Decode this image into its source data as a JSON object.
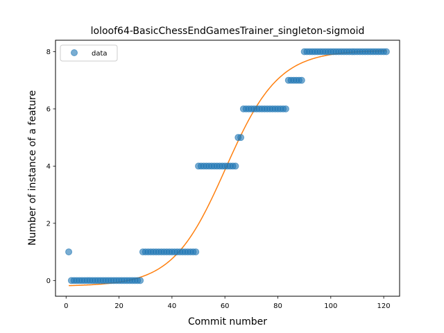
{
  "chart_data": {
    "type": "scatter",
    "title": "loloof64-BasicChessEndGamesTrainer_singleton-sigmoid",
    "xlabel": "Commit number",
    "ylabel": "Number of instance of a feature",
    "xlim": [
      -4,
      126
    ],
    "ylim": [
      -0.55,
      8.4
    ],
    "xticks": [
      0,
      20,
      40,
      60,
      80,
      100,
      120
    ],
    "yticks": [
      0,
      2,
      4,
      6,
      8
    ],
    "grid": false,
    "legend": {
      "position": "top-left",
      "entries": [
        "data"
      ]
    },
    "colors": {
      "data": "#1f77b4",
      "fit": "#ff7f0e"
    },
    "series": [
      {
        "name": "data",
        "kind": "scatter",
        "segments": [
          {
            "x_from": 1,
            "x_to": 1,
            "y": 1
          },
          {
            "x_from": 2,
            "x_to": 28,
            "y": 0
          },
          {
            "x_from": 29,
            "x_to": 49,
            "y": 1
          },
          {
            "x_from": 50,
            "x_to": 64,
            "y": 4
          },
          {
            "x_from": 65,
            "x_to": 66,
            "y": 5
          },
          {
            "x_from": 67,
            "x_to": 83,
            "y": 6
          },
          {
            "x_from": 84,
            "x_to": 89,
            "y": 7
          },
          {
            "x_from": 90,
            "x_to": 121,
            "y": 8
          }
        ]
      },
      {
        "kind": "line",
        "model": "sigmoid",
        "params": {
          "L": 8.25,
          "k": 0.1,
          "x0": 60.3,
          "b": -0.2
        },
        "x_range": [
          1,
          121
        ]
      }
    ]
  }
}
